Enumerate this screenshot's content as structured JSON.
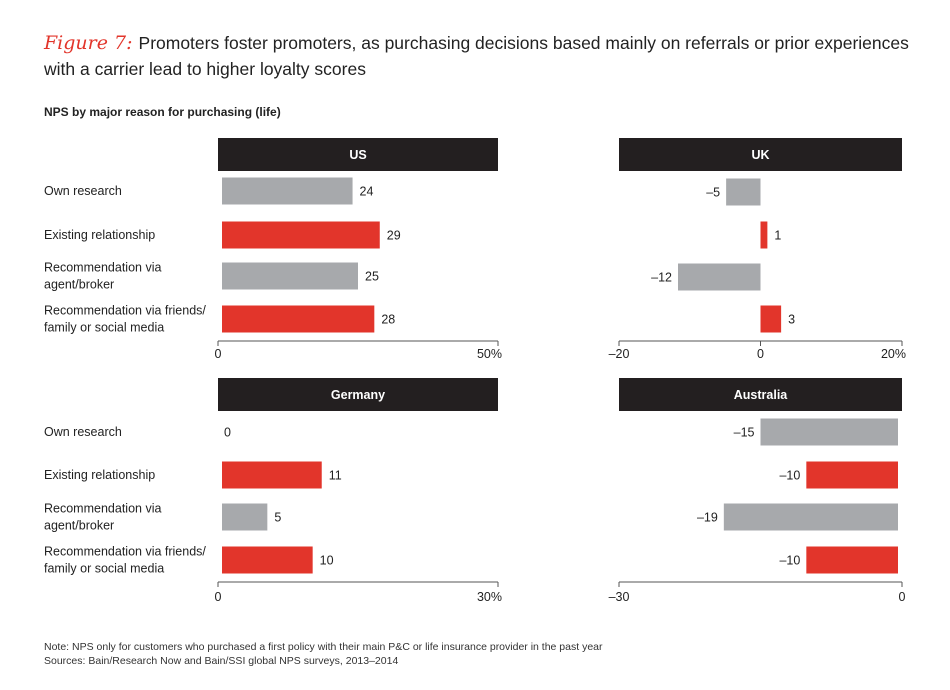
{
  "figure_label": "Figure 7:",
  "title": "Promoters foster promoters, as purchasing decisions based mainly on referrals or prior experiences with a carrier lead to higher loyalty scores",
  "subtitle": "NPS by major reason for purchasing (life)",
  "note": "Note: NPS only for customers who purchased a first policy with their main P&C or life insurance provider in the past year",
  "sources": "Sources: Bain/Research Now and Bain/SSI global NPS surveys, 2013–2014",
  "colors": {
    "gray": "#a7a9ac",
    "red": "#e2352b",
    "header_bg": "#231f20",
    "header_text": "#ffffff",
    "axis": "#555555"
  },
  "chart_data": [
    {
      "type": "bar",
      "orientation": "horizontal",
      "title": "US",
      "categories": [
        "Own research",
        "Existing relationship",
        "Recommendation via agent/broker",
        "Recommendation via friends/ family or social media"
      ],
      "values": [
        24,
        29,
        25,
        28
      ],
      "value_labels": [
        "24",
        "29",
        "25",
        "28"
      ],
      "bar_colors": [
        "gray",
        "red",
        "gray",
        "red"
      ],
      "xlim": [
        0,
        50
      ],
      "xtick_labels": [
        "0",
        "50%"
      ]
    },
    {
      "type": "bar",
      "orientation": "horizontal",
      "title": "UK",
      "categories": [
        "Own research",
        "Existing relationship",
        "Recommendation via agent/broker",
        "Recommendation via friends/ family or social media"
      ],
      "values": [
        -5,
        1,
        -12,
        3
      ],
      "value_labels": [
        "–5",
        "1",
        "–12",
        "3"
      ],
      "bar_colors": [
        "gray",
        "red",
        "gray",
        "red"
      ],
      "xlim": [
        -20,
        20
      ],
      "xtick_labels": [
        "–20",
        "0",
        "20%"
      ]
    },
    {
      "type": "bar",
      "orientation": "horizontal",
      "title": "Germany",
      "categories": [
        "Own research",
        "Existing relationship",
        "Recommendation via agent/broker",
        "Recommendation via friends/ family or social media"
      ],
      "values": [
        0,
        11,
        5,
        10
      ],
      "value_labels": [
        "0",
        "11",
        "5",
        "10"
      ],
      "bar_colors": [
        "gray",
        "red",
        "gray",
        "red"
      ],
      "xlim": [
        0,
        30
      ],
      "xtick_labels": [
        "0",
        "30%"
      ]
    },
    {
      "type": "bar",
      "orientation": "horizontal",
      "title": "Australia",
      "categories": [
        "Own research",
        "Existing relationship",
        "Recommendation via agent/broker",
        "Recommendation via friends/ family or social media"
      ],
      "values": [
        -15,
        -10,
        -19,
        -10
      ],
      "value_labels": [
        "–15",
        "–10",
        "–19",
        "–10"
      ],
      "bar_colors": [
        "gray",
        "red",
        "gray",
        "red"
      ],
      "xlim": [
        -30,
        0
      ],
      "xtick_labels": [
        "–30",
        "0"
      ]
    }
  ],
  "row_labels_top": [
    [
      "Own research"
    ],
    [
      "Existing relationship"
    ],
    [
      "Recommendation via",
      "agent/broker"
    ],
    [
      "Recommendation via friends/",
      "family or social media"
    ]
  ],
  "row_labels_bottom": [
    [
      "Own research"
    ],
    [
      "Existing relationship"
    ],
    [
      "Recommendation via",
      "agent/broker"
    ],
    [
      "Recommendation via friends/",
      "family or social media"
    ]
  ]
}
